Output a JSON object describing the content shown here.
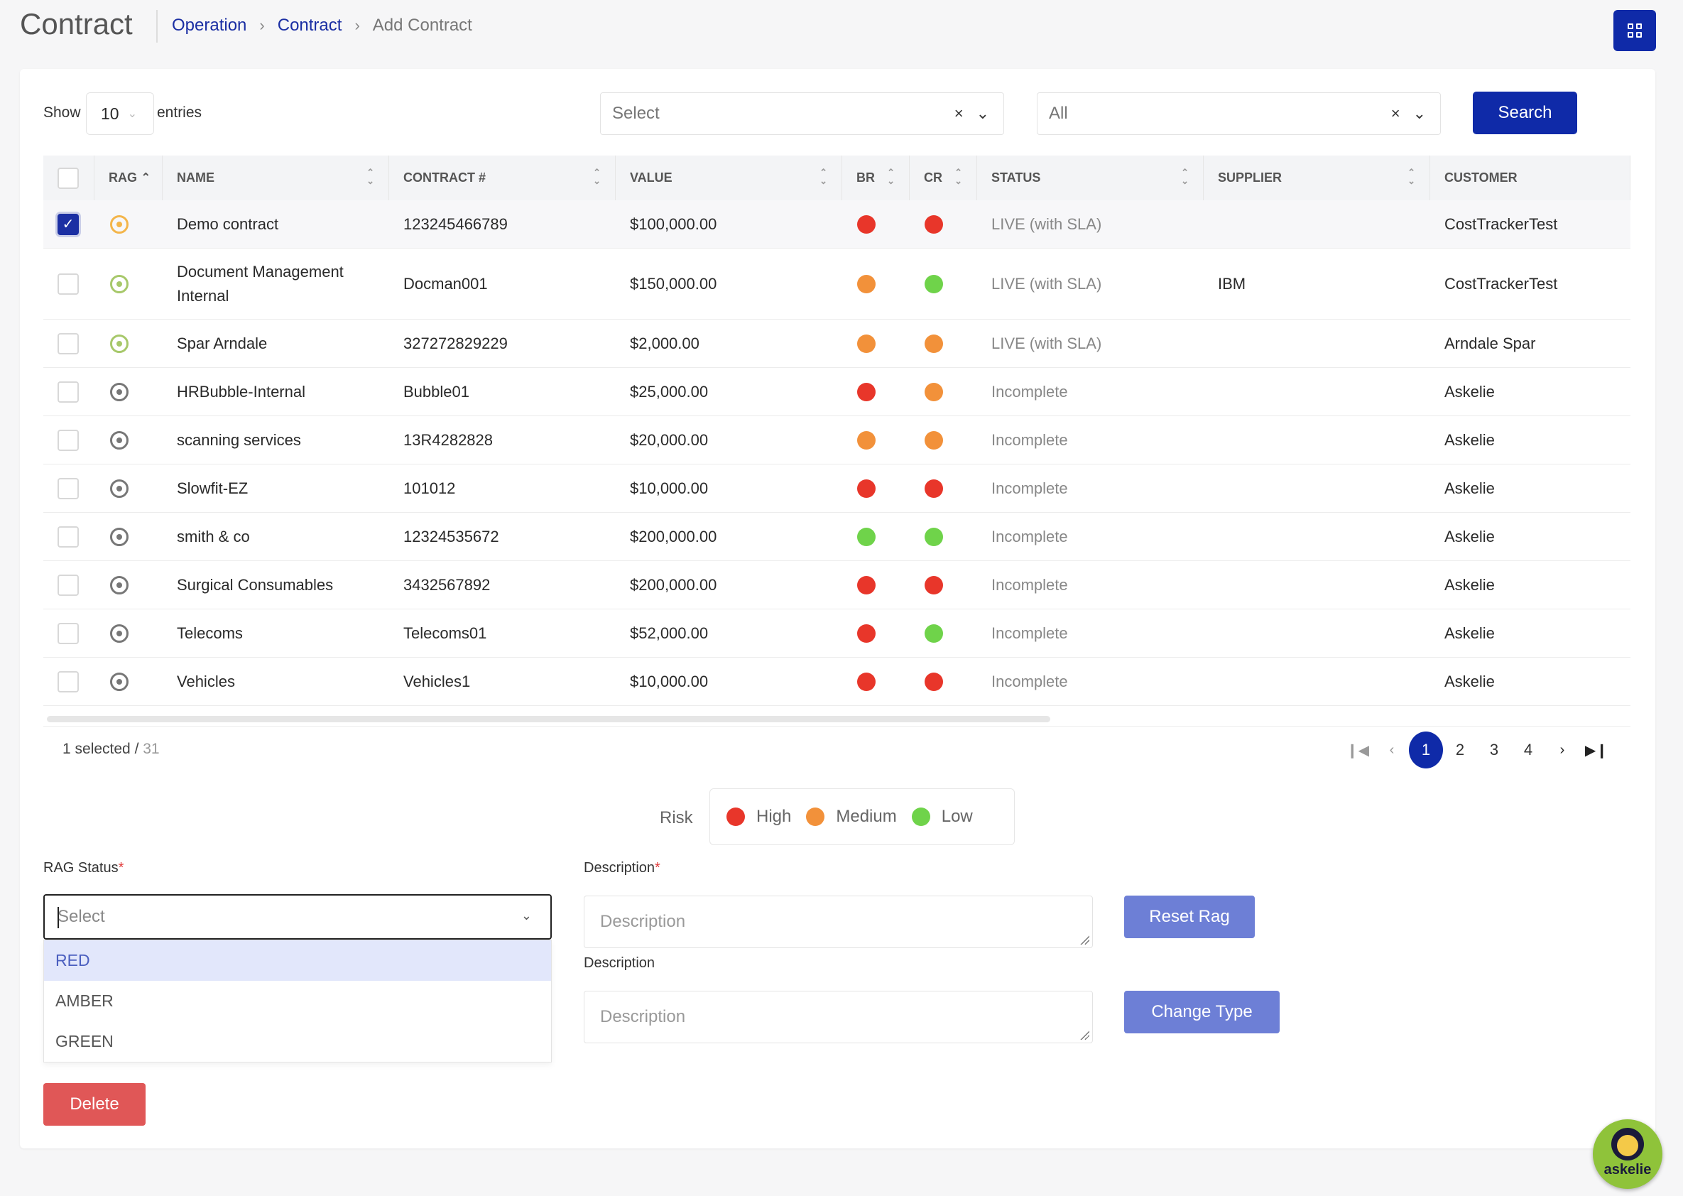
{
  "header": {
    "title": "Contract",
    "breadcrumb": [
      "Operation",
      "Contract",
      "Add Contract"
    ]
  },
  "toolbar": {
    "show_label": "Show",
    "entries_value": "10",
    "entries_label": "entries",
    "filter1_value": "Select",
    "filter2_value": "All",
    "search_label": "Search"
  },
  "table": {
    "columns": [
      "RAG",
      "NAME",
      "CONTRACT #",
      "VALUE",
      "BR",
      "CR",
      "STATUS",
      "SUPPLIER",
      "CUSTOMER"
    ],
    "rows": [
      {
        "checked": true,
        "rag": "amber",
        "name": "Demo contract",
        "contract": "123245466789",
        "value": "$100,000.00",
        "br": "red",
        "cr": "red",
        "status": "LIVE (with SLA)",
        "supplier": "",
        "customer": "CostTrackerTest"
      },
      {
        "checked": false,
        "rag": "green",
        "name": "Document Management Internal",
        "contract": "Docman001",
        "value": "$150,000.00",
        "br": "orange",
        "cr": "green",
        "status": "LIVE (with SLA)",
        "supplier": "IBM",
        "customer": "CostTrackerTest"
      },
      {
        "checked": false,
        "rag": "green",
        "name": "Spar Arndale",
        "contract": "327272829229",
        "value": "$2,000.00",
        "br": "orange",
        "cr": "orange",
        "status": "LIVE (with SLA)",
        "supplier": "",
        "customer": "Arndale Spar"
      },
      {
        "checked": false,
        "rag": "grey",
        "name": "HRBubble-Internal",
        "contract": "Bubble01",
        "value": "$25,000.00",
        "br": "red",
        "cr": "orange",
        "status": "Incomplete",
        "supplier": "",
        "customer": "Askelie"
      },
      {
        "checked": false,
        "rag": "grey",
        "name": "scanning services",
        "contract": "13R4282828",
        "value": "$20,000.00",
        "br": "orange",
        "cr": "orange",
        "status": "Incomplete",
        "supplier": "",
        "customer": "Askelie"
      },
      {
        "checked": false,
        "rag": "grey",
        "name": "Slowfit-EZ",
        "contract": "101012",
        "value": "$10,000.00",
        "br": "red",
        "cr": "red",
        "status": "Incomplete",
        "supplier": "",
        "customer": "Askelie"
      },
      {
        "checked": false,
        "rag": "grey",
        "name": "smith & co",
        "contract": "12324535672",
        "value": "$200,000.00",
        "br": "green",
        "cr": "green",
        "status": "Incomplete",
        "supplier": "",
        "customer": "Askelie"
      },
      {
        "checked": false,
        "rag": "grey",
        "name": "Surgical Consumables",
        "contract": "3432567892",
        "value": "$200,000.00",
        "br": "red",
        "cr": "red",
        "status": "Incomplete",
        "supplier": "",
        "customer": "Askelie"
      },
      {
        "checked": false,
        "rag": "grey",
        "name": "Telecoms",
        "contract": "Telecoms01",
        "value": "$52,000.00",
        "br": "red",
        "cr": "green",
        "status": "Incomplete",
        "supplier": "",
        "customer": "Askelie"
      },
      {
        "checked": false,
        "rag": "grey",
        "name": "Vehicles",
        "contract": "Vehicles1",
        "value": "$10,000.00",
        "br": "red",
        "cr": "red",
        "status": "Incomplete",
        "supplier": "",
        "customer": "Askelie"
      }
    ]
  },
  "footer": {
    "selected_text": "1 selected /",
    "total": "31",
    "pages": [
      "1",
      "2",
      "3",
      "4"
    ],
    "active_page": "1"
  },
  "legend": {
    "label": "Risk",
    "items": [
      "High",
      "Medium",
      "Low"
    ]
  },
  "form": {
    "rag_label": "RAG Status",
    "rag_placeholder": "Select",
    "rag_options": [
      "RED",
      "AMBER",
      "GREEN"
    ],
    "desc1_label": "Description",
    "desc1_placeholder": "Description",
    "desc2_label": "Description",
    "desc2_placeholder": "Description",
    "reset_label": "Reset Rag",
    "change_label": "Change Type",
    "delete_label": "Delete"
  },
  "chat": {
    "label": "askelie"
  },
  "colors": {
    "primary": "#0f2aa8",
    "red": "#e8362a",
    "orange": "#f2913a",
    "green": "#6fd34a",
    "amber_ring": "#f3b54a",
    "green_ring": "#a7c86a",
    "grey_ring": "#777777",
    "danger": "#e05757",
    "soft_primary": "#6d7fd6"
  }
}
